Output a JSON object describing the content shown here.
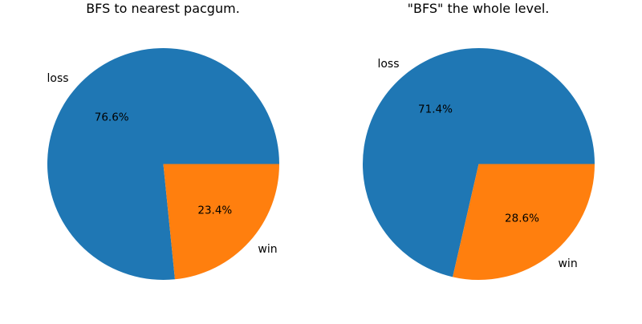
{
  "chart_data": [
    {
      "type": "pie",
      "title": "BFS to nearest pacgum.",
      "categories": [
        "loss",
        "win"
      ],
      "values": [
        76.6,
        23.4
      ],
      "percent_labels": [
        "76.6%",
        "23.4%"
      ],
      "colors": [
        "#1f77b4",
        "#ff7f0e"
      ]
    },
    {
      "type": "pie",
      "title": "\"BFS\" the whole level.",
      "categories": [
        "loss",
        "win"
      ],
      "values": [
        71.4,
        28.6
      ],
      "percent_labels": [
        "71.4%",
        "28.6%"
      ],
      "colors": [
        "#1f77b4",
        "#ff7f0e"
      ]
    }
  ]
}
